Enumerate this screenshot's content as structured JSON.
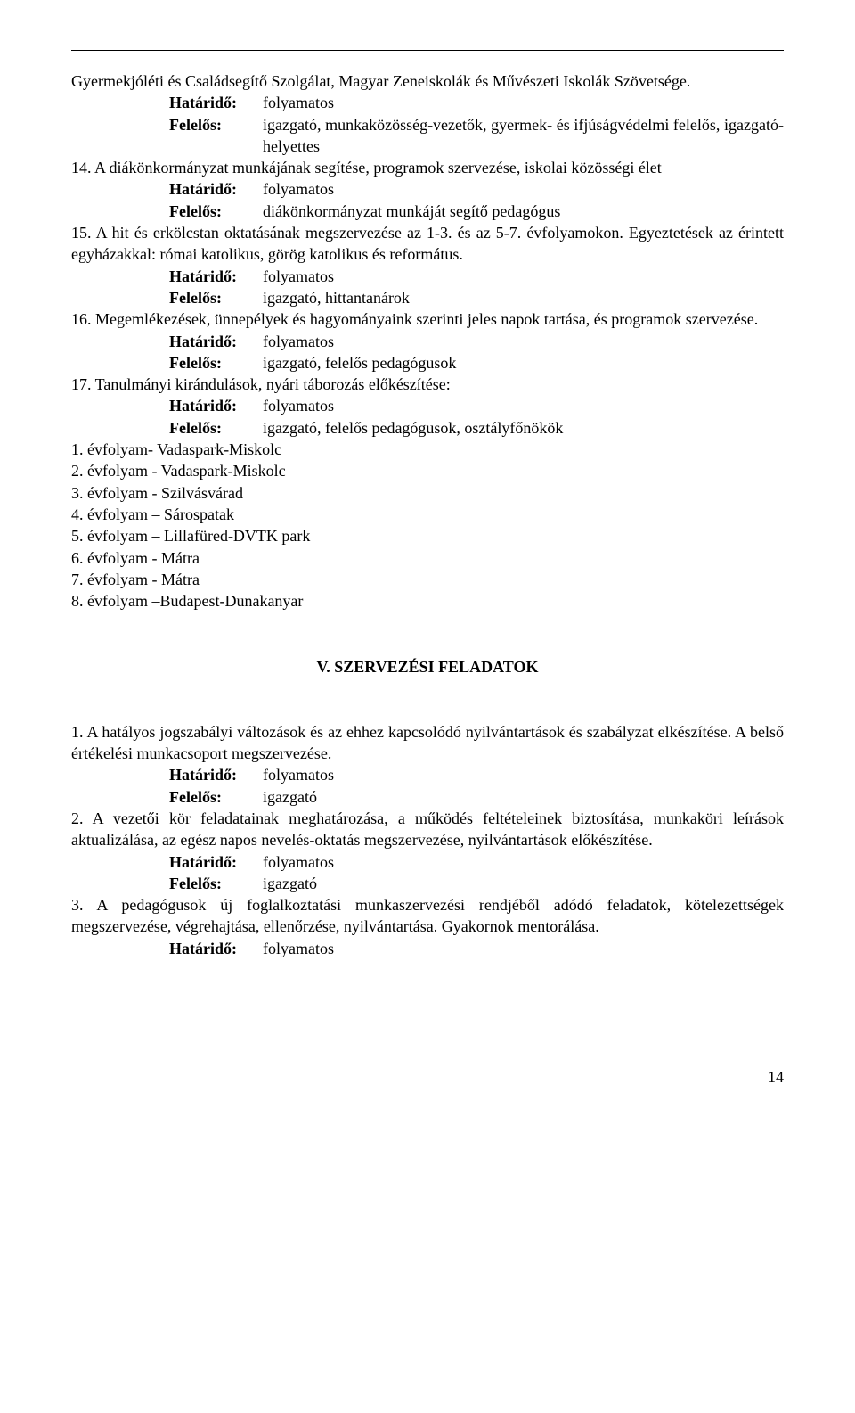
{
  "intro": {
    "line1": "Gyermekjóléti és Családsegítő Szolgálat, Magyar Zeneiskolák és Művészeti Iskolák Szövetsége.",
    "h_label": "Határidő:",
    "h_val": "folyamatos",
    "f_label": "Felelős:",
    "f_val": "igazgató, munkaközösség-vezetők, gyermek- és ifjúságvédelmi felelős, igazgató-helyettes"
  },
  "p14": {
    "text": "14. A diákönkormányzat munkájának segítése, programok szervezése, iskolai közösségi élet",
    "h_label": "Határidő:",
    "h_val": "folyamatos",
    "f_label": "Felelős:",
    "f_val": "diákönkormányzat munkáját segítő pedagógus"
  },
  "p15": {
    "text": "15. A hit és erkölcstan oktatásának megszervezése az 1-3. és az 5-7. évfolyamokon. Egyeztetések az érintett egyházakkal: római katolikus, görög katolikus és református.",
    "h_label": "Határidő:",
    "h_val": "folyamatos",
    "f_label": "Felelős:",
    "f_val": "igazgató, hittantanárok"
  },
  "p16": {
    "text": "16. Megemlékezések, ünnepélyek és hagyományaink szerinti jeles napok tartása, és programok szervezése.",
    "h_label": "Határidő:",
    "h_val": "folyamatos",
    "f_label": "Felelős:",
    "f_val": "igazgató, felelős pedagógusok"
  },
  "p17": {
    "text": "17. Tanulmányi kirándulások, nyári táborozás előkészítése:",
    "h_label": "Határidő:",
    "h_val": "folyamatos",
    "f_label": "Felelős:",
    "f_val": "igazgató, felelős pedagógusok, osztályfőnökök"
  },
  "trips": {
    "i1": "1. évfolyam- Vadaspark-Miskolc",
    "i2": "2. évfolyam - Vadaspark-Miskolc",
    "i3": "3. évfolyam - Szilvásvárad",
    "i4": "4. évfolyam – Sárospatak",
    "i5": "5. évfolyam – Lillafüred-DVTK park",
    "i6": "6. évfolyam - Mátra",
    "i7": "7. évfolyam - Mátra",
    "i8": "8. évfolyam –Budapest-Dunakanyar"
  },
  "section5": {
    "title": "V. SZERVEZÉSI FELADATOK",
    "p1": {
      "text": "1.  A hatályos jogszabályi változások és az ehhez kapcsolódó nyilvántartások és szabályzat elkészítése. A belső értékelési munkacsoport megszervezése.",
      "h_label": "Határidő:",
      "h_val": "folyamatos",
      "f_label": "Felelős:",
      "f_val": "igazgató"
    },
    "p2": {
      "text": "2.  A vezetői kör feladatainak meghatározása, a működés feltételeinek biztosítása, munkaköri leírások aktualizálása, az egész napos nevelés-oktatás megszervezése, nyilvántartások előkészítése.",
      "h_label": "Határidő:",
      "h_val": "folyamatos",
      "f_label": "Felelős:",
      "f_val": "igazgató"
    },
    "p3": {
      "text": "3.  A pedagógusok új foglalkoztatási munkaszervezési rendjéből adódó feladatok, kötelezettségek megszervezése, végrehajtása, ellenőrzése, nyilvántartása. Gyakornok mentorálása.",
      "h_label": "Határidő:",
      "h_val": "folyamatos"
    }
  },
  "page_number": "14"
}
